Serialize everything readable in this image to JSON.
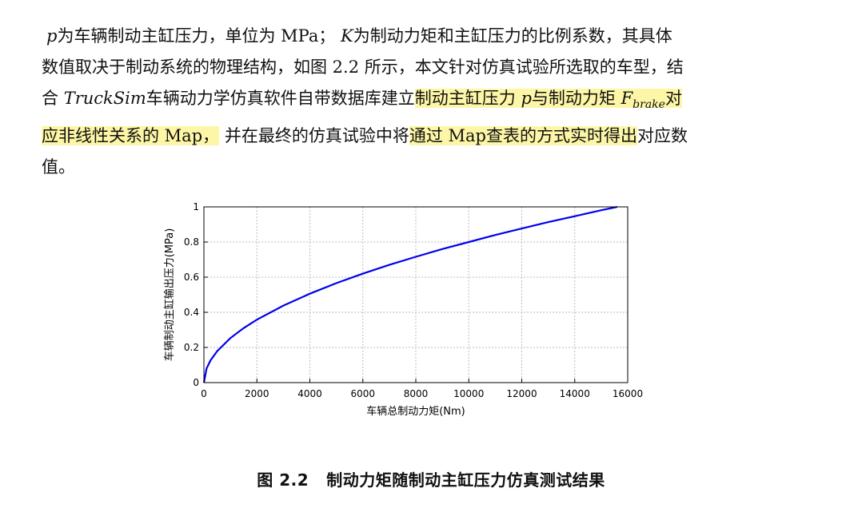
{
  "paragraph": {
    "l1_a": "p",
    "l1_b": "为车辆制动主缸压力，单位为 MPa；",
    "l1_c": "K",
    "l1_d": "为制动力矩和主缸压力的比例系数，其具体",
    "l2": "数值取决于制动系统的物理结构，如图 2.2 所示，本文针对仿真试验所选取的车型，结",
    "l3_a": "合 ",
    "l3_b": "TruckSim",
    "l3_c": "车辆动力学仿真软件自带数据库建立",
    "l3_hl1": "制动主缸压力 ",
    "l3_hl2": "p",
    "l3_hl3": "与制动力矩 ",
    "l3_hl4": "F",
    "l3_hl5": "brake",
    "l3_d": "对",
    "l4_hl": "应非线性关系的 Map，",
    "l4_a": " 并在最终的仿真试验中将",
    "l4_hl2": "通过 Map查表的方式实时得出",
    "l4_b": "对应数",
    "l5": "值。"
  },
  "chart_data": {
    "type": "line",
    "title": "",
    "xlabel": "车辆总制动力矩(Nm)",
    "ylabel": "车辆制动主缸输出压力(MPa)",
    "xlim": [
      0,
      16000
    ],
    "ylim": [
      0,
      1
    ],
    "xticks": [
      "0",
      "2000",
      "4000",
      "6000",
      "8000",
      "10000",
      "12000",
      "14000",
      "16000"
    ],
    "yticks": [
      "0",
      "0.2",
      "0.4",
      "0.6",
      "0.8",
      "1"
    ],
    "grid": true,
    "series": [
      {
        "color": "#0000ee",
        "x": [
          0,
          100,
          250,
          500,
          1000,
          1500,
          2000,
          3000,
          4000,
          5000,
          6000,
          7000,
          8000,
          9000,
          10000,
          11000,
          12000,
          13000,
          14000,
          15000,
          15600
        ],
        "y": [
          0,
          0.08,
          0.127,
          0.179,
          0.253,
          0.31,
          0.358,
          0.438,
          0.506,
          0.566,
          0.62,
          0.67,
          0.716,
          0.76,
          0.8,
          0.84,
          0.877,
          0.913,
          0.947,
          0.981,
          1.0
        ]
      }
    ]
  },
  "caption": {
    "number": "图 2.2",
    "text": "制动力矩随制动主缸压力仿真测试结果"
  }
}
